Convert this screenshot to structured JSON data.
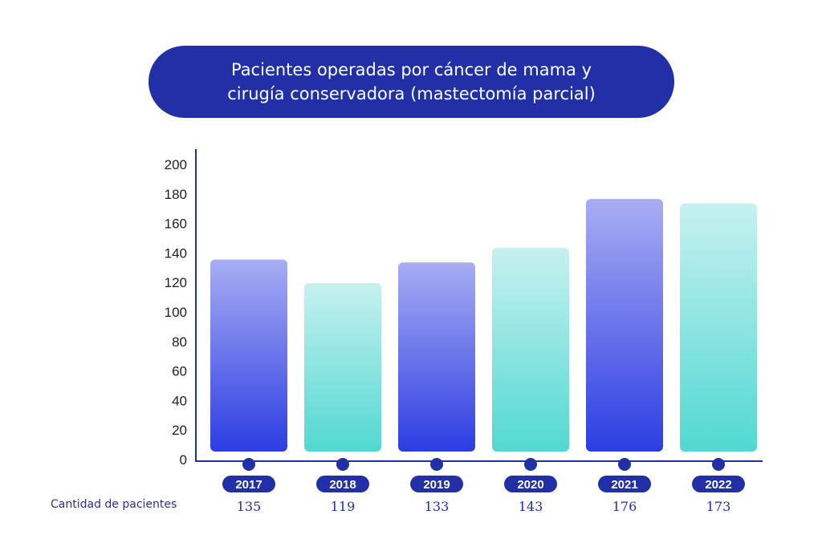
{
  "title": {
    "line1": "Pacientes operadas por cáncer de mama y",
    "line2": "cirugía conservadora (mastectomía parcial)"
  },
  "footer_label": "Cantidad de pacientes",
  "colors": {
    "title_bg": "#2230a8",
    "axis": "#2230a8",
    "year_pill": "#2230a8",
    "value_text": "#2230a8",
    "blue_top": "#a8adf3",
    "blue_bottom": "#2c3de3",
    "teal_top": "#c6f1f0",
    "teal_bottom": "#52d8d2"
  },
  "chart_data": {
    "type": "bar",
    "title": "Pacientes operadas por cáncer de mama y cirugía conservadora (mastectomía parcial)",
    "xlabel": "",
    "ylabel": "",
    "categories": [
      "2017",
      "2018",
      "2019",
      "2020",
      "2021",
      "2022"
    ],
    "values": [
      135,
      119,
      133,
      143,
      176,
      173
    ],
    "value_labels": [
      "135",
      "119",
      "133",
      "143",
      "176",
      "173"
    ],
    "bar_styles": [
      "blue",
      "teal",
      "blue",
      "teal",
      "blue",
      "teal"
    ],
    "ylim": [
      0,
      200
    ],
    "yticks": [
      0,
      20,
      40,
      60,
      80,
      100,
      120,
      140,
      160,
      180,
      200
    ],
    "grid": false,
    "legend": "none"
  }
}
